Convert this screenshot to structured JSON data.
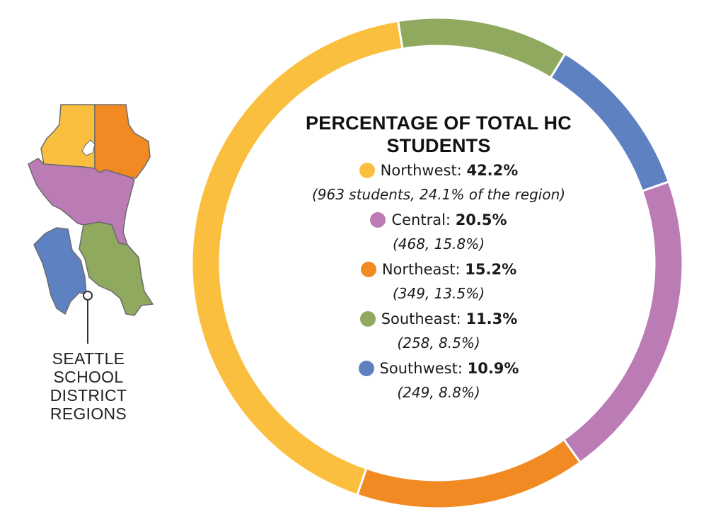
{
  "chart_data": {
    "type": "donut",
    "title": "PERCENTAGE OF TOTAL HC STUDENTS",
    "slices": [
      {
        "region": "Northwest",
        "label": "Northwest:",
        "value": 42.2,
        "value_text": "42.2%",
        "students": 963,
        "region_share": 24.1,
        "detail": "(963 students, 24.1% of the region)",
        "color": "#FBBF3F"
      },
      {
        "region": "Central",
        "label": "Central:",
        "value": 20.5,
        "value_text": "20.5%",
        "students": 468,
        "region_share": 15.8,
        "detail": "(468, 15.8%)",
        "color": "#BB7BB5"
      },
      {
        "region": "Northeast",
        "label": "Northeast:",
        "value": 15.2,
        "value_text": "15.2%",
        "students": 349,
        "region_share": 13.5,
        "detail": "(349, 13.5%)",
        "color": "#F28A24"
      },
      {
        "region": "Southeast",
        "label": "Southeast:",
        "value": 11.3,
        "value_text": "11.3%",
        "students": 258,
        "region_share": 8.5,
        "detail": "(258, 8.5%)",
        "color": "#8FA95E"
      },
      {
        "region": "Southwest",
        "label": "Southwest:",
        "value": 10.9,
        "value_text": "10.9%",
        "students": 249,
        "region_share": 8.8,
        "detail": "(249, 8.8%)",
        "color": "#5E81C2"
      }
    ],
    "ring_order": [
      "Southeast",
      "Southwest",
      "Central",
      "Northeast",
      "Northwest"
    ]
  },
  "map": {
    "caption_lines": [
      "SEATTLE",
      "SCHOOL",
      "DISTRICT",
      "REGIONS"
    ]
  }
}
